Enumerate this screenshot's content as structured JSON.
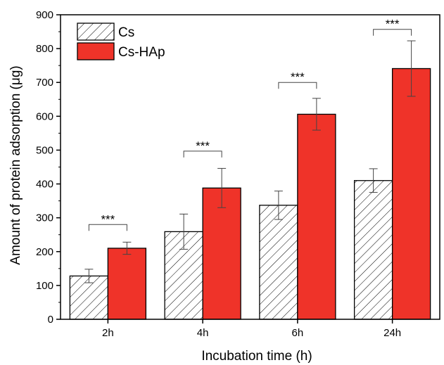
{
  "chart_data": {
    "type": "bar",
    "xlabel": "Incubation time (h)",
    "ylabel": "Amount of protein adsorption (μg)",
    "ylim": [
      0,
      900
    ],
    "yticks": [
      0,
      100,
      200,
      300,
      400,
      500,
      600,
      700,
      800,
      900
    ],
    "categories": [
      "2h",
      "4h",
      "6h",
      "24h"
    ],
    "series": [
      {
        "name": "Cs",
        "values": [
          128,
          259,
          337,
          410
        ],
        "errors": [
          20,
          52,
          42,
          35
        ],
        "fill": "#ffffff",
        "pattern": "diagonal-hatch"
      },
      {
        "name": "Cs-HAp",
        "values": [
          210,
          388,
          606,
          741
        ],
        "errors": [
          18,
          58,
          47,
          82
        ],
        "fill": "#ef3329",
        "pattern": "solid"
      }
    ],
    "annotations": [
      {
        "category": "2h",
        "text": "***",
        "bracket_y": 280
      },
      {
        "category": "4h",
        "text": "***",
        "bracket_y": 497
      },
      {
        "category": "6h",
        "text": "***",
        "bracket_y": 700
      },
      {
        "category": "24h",
        "text": "***",
        "bracket_y": 857
      }
    ],
    "legend_position": "top-left",
    "grid": false
  }
}
